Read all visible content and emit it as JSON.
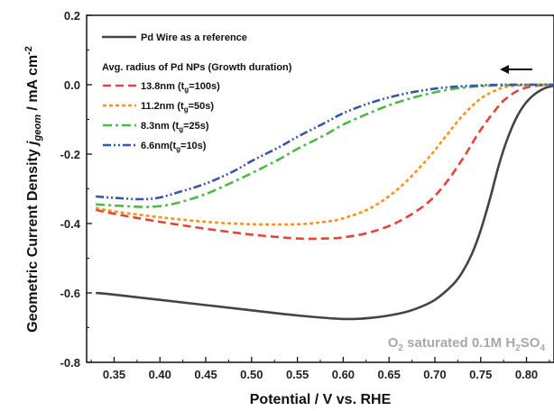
{
  "chart_data": {
    "type": "line",
    "xlabel": "Potential / V vs. RHE",
    "ylabel_main": "Geometric Current Density ",
    "ylabel_sym": "j",
    "ylabel_sub": "geom",
    "ylabel_unit": " / mA cm",
    "ylabel_sup": "-2",
    "xlim": [
      0.32,
      0.83
    ],
    "ylim": [
      -0.8,
      0.2
    ],
    "xticks": [
      0.35,
      0.4,
      0.45,
      0.5,
      0.55,
      0.6,
      0.65,
      0.7,
      0.75,
      0.8
    ],
    "xtick_labels": [
      "0.35",
      "0.40",
      "0.45",
      "0.50",
      "0.55",
      "0.60",
      "0.65",
      "0.70",
      "0.75",
      "0.80"
    ],
    "yticks": [
      0.2,
      0.0,
      -0.2,
      -0.4,
      -0.6,
      -0.8
    ],
    "ytick_labels": [
      "0.2",
      "0.0",
      "-0.2",
      "-0.4",
      "-0.6",
      "-0.8"
    ],
    "grid": false,
    "legend_ref": {
      "text": "Pd Wire as a reference",
      "color": "#444444",
      "dash": "solid"
    },
    "legend_header": "Avg. radius of Pd NPs (Growth duration)",
    "legend_items": [
      {
        "pre": "13.8nm (t",
        "sub": "g",
        "post": "=100s)"
      },
      {
        "pre": "11.2nm (t",
        "sub": "g",
        "post": "=50s)"
      },
      {
        "pre": "8.3nm (t",
        "sub": "g",
        "post": "=25s)"
      },
      {
        "pre": "6.6nm(t",
        "sub": "g",
        "post": "=10s)"
      }
    ],
    "series": [
      {
        "color": "#444444",
        "dash": "solid",
        "x": [
          0.33,
          0.35,
          0.4,
          0.45,
          0.5,
          0.55,
          0.6,
          0.63,
          0.66,
          0.68,
          0.7,
          0.72,
          0.73,
          0.74,
          0.75,
          0.76,
          0.77,
          0.78,
          0.79,
          0.8,
          0.81,
          0.82,
          0.83
        ],
        "y": [
          -0.6,
          -0.605,
          -0.62,
          -0.635,
          -0.65,
          -0.665,
          -0.675,
          -0.672,
          -0.66,
          -0.645,
          -0.62,
          -0.575,
          -0.54,
          -0.49,
          -0.42,
          -0.33,
          -0.23,
          -0.15,
          -0.09,
          -0.05,
          -0.025,
          -0.01,
          -0.003
        ]
      },
      {
        "color": "#e8423c",
        "dash": "dash",
        "x": [
          0.33,
          0.35,
          0.4,
          0.45,
          0.5,
          0.55,
          0.58,
          0.6,
          0.63,
          0.66,
          0.69,
          0.71,
          0.73,
          0.75,
          0.77,
          0.78,
          0.79,
          0.8,
          0.81,
          0.82,
          0.83
        ],
        "y": [
          -0.36,
          -0.372,
          -0.395,
          -0.415,
          -0.432,
          -0.443,
          -0.443,
          -0.44,
          -0.425,
          -0.395,
          -0.345,
          -0.29,
          -0.215,
          -0.13,
          -0.06,
          -0.035,
          -0.018,
          -0.008,
          -0.003,
          -0.001,
          0.0
        ]
      },
      {
        "color": "#f7941d",
        "dash": "shortdash",
        "x": [
          0.33,
          0.35,
          0.4,
          0.45,
          0.5,
          0.55,
          0.58,
          0.6,
          0.63,
          0.66,
          0.69,
          0.71,
          0.73,
          0.75,
          0.77,
          0.78,
          0.79,
          0.8,
          0.81,
          0.83
        ],
        "y": [
          -0.355,
          -0.365,
          -0.382,
          -0.395,
          -0.402,
          -0.402,
          -0.395,
          -0.385,
          -0.355,
          -0.3,
          -0.22,
          -0.155,
          -0.09,
          -0.04,
          -0.012,
          -0.005,
          -0.002,
          -0.001,
          0.0,
          0.0
        ]
      },
      {
        "color": "#4cb94a",
        "dash": "dashdot",
        "x": [
          0.33,
          0.35,
          0.38,
          0.4,
          0.42,
          0.45,
          0.48,
          0.5,
          0.53,
          0.55,
          0.58,
          0.6,
          0.63,
          0.66,
          0.69,
          0.72,
          0.75,
          0.77,
          0.8,
          0.83
        ],
        "y": [
          -0.345,
          -0.348,
          -0.352,
          -0.35,
          -0.34,
          -0.315,
          -0.28,
          -0.255,
          -0.215,
          -0.185,
          -0.145,
          -0.115,
          -0.08,
          -0.05,
          -0.028,
          -0.012,
          -0.004,
          -0.002,
          0.0,
          0.0
        ]
      },
      {
        "color": "#3b56a8",
        "dash": "dashdotdot",
        "x": [
          0.33,
          0.35,
          0.38,
          0.4,
          0.42,
          0.45,
          0.48,
          0.5,
          0.53,
          0.55,
          0.58,
          0.6,
          0.63,
          0.66,
          0.69,
          0.72,
          0.75,
          0.77,
          0.8,
          0.83
        ],
        "y": [
          -0.322,
          -0.326,
          -0.33,
          -0.325,
          -0.31,
          -0.285,
          -0.25,
          -0.22,
          -0.18,
          -0.15,
          -0.11,
          -0.082,
          -0.052,
          -0.03,
          -0.015,
          -0.006,
          -0.002,
          0.0,
          0.0,
          0.0
        ]
      }
    ],
    "annotation": {
      "pre": "O",
      "sub1": "2",
      "mid": " saturated 0.1M H",
      "sub2": "2",
      "mid2": "SO",
      "sub3": "4"
    },
    "scan_arrow": {
      "direction": "left"
    }
  }
}
